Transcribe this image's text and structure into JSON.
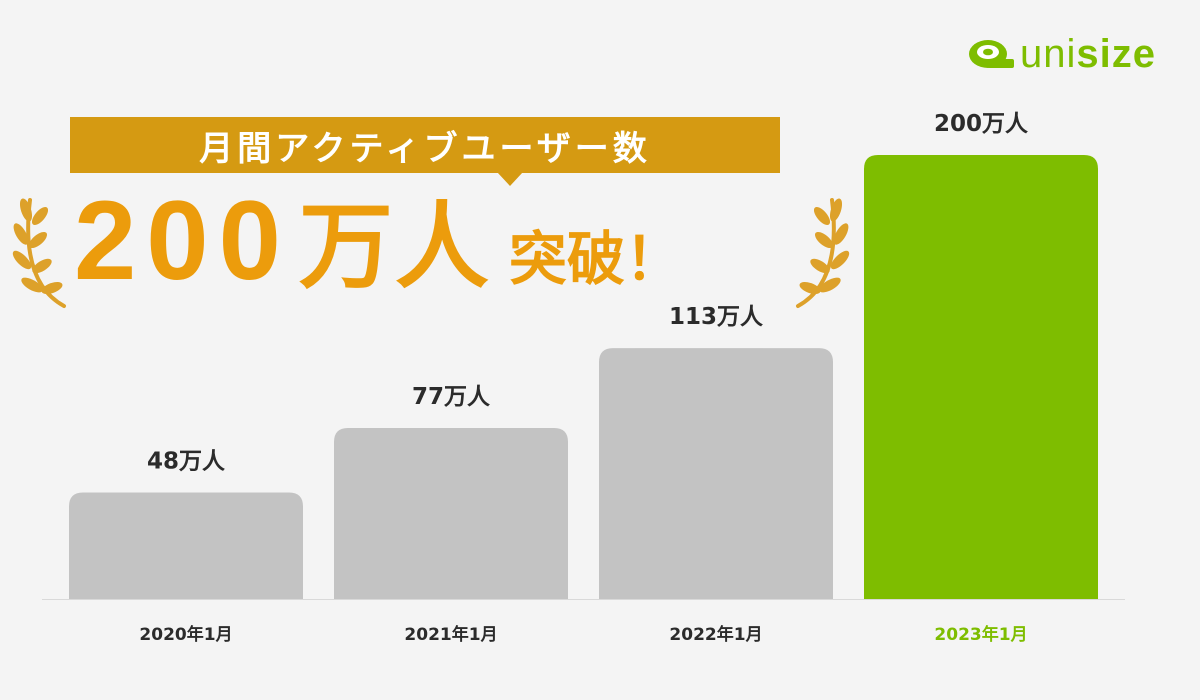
{
  "brand": {
    "name_light": "uni",
    "name_bold": "size",
    "color": "#7ebd00"
  },
  "headline": {
    "banner_text": "月間アクティブユーザー数",
    "milestone_number": "200",
    "milestone_unit": "万人",
    "milestone_suffix": "突破！",
    "banner_color": "#d59a12",
    "milestone_color": "#ec9c0c"
  },
  "chart_data": {
    "type": "bar",
    "title": "月間アクティブユーザー数",
    "categories": [
      "2020年1月",
      "2021年1月",
      "2022年1月",
      "2023年1月"
    ],
    "values": [
      48,
      77,
      113,
      200
    ],
    "value_labels": [
      "48万人",
      "77万人",
      "113万人",
      "200万人"
    ],
    "unit": "万人",
    "ylim": [
      0,
      200
    ],
    "grid": false,
    "highlight_index": 3,
    "colors": {
      "default_bar": "#c3c3c3",
      "highlight_bar": "#7ebd00",
      "default_label": "#2b2b2b",
      "highlight_label": "#7ebd00"
    }
  }
}
